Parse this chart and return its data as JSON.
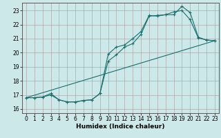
{
  "title": "",
  "xlabel": "Humidex (Indice chaleur)",
  "background_color": "#cce8e8",
  "grid_color": "#aaaaaa",
  "line_color": "#1a6e6e",
  "xlim": [
    -0.5,
    23.5
  ],
  "ylim": [
    15.7,
    23.55
  ],
  "xticks": [
    0,
    1,
    2,
    3,
    4,
    5,
    6,
    7,
    8,
    9,
    10,
    11,
    12,
    13,
    14,
    15,
    16,
    17,
    18,
    19,
    20,
    21,
    22,
    23
  ],
  "yticks": [
    16,
    17,
    18,
    19,
    20,
    21,
    22,
    23
  ],
  "line1_x": [
    0,
    1,
    2,
    3,
    4,
    5,
    6,
    7,
    8,
    9,
    10,
    11,
    12,
    13,
    14,
    15,
    16,
    17,
    18,
    19,
    20,
    21,
    22,
    23
  ],
  "line1_y": [
    16.8,
    16.8,
    16.85,
    17.0,
    16.65,
    16.5,
    16.5,
    16.6,
    16.65,
    17.1,
    19.9,
    20.4,
    20.55,
    21.0,
    21.5,
    22.65,
    22.6,
    22.7,
    22.9,
    23.0,
    22.35,
    21.05,
    20.9,
    20.85
  ],
  "line2_x": [
    0,
    1,
    2,
    3,
    4,
    5,
    6,
    7,
    8,
    9,
    10,
    11,
    12,
    13,
    14,
    15,
    16,
    17,
    18,
    19,
    20,
    21,
    22,
    23
  ],
  "line2_y": [
    16.8,
    16.8,
    16.85,
    17.1,
    16.65,
    16.5,
    16.5,
    16.6,
    16.65,
    17.1,
    19.4,
    19.85,
    20.4,
    20.65,
    21.3,
    22.6,
    22.65,
    22.7,
    22.7,
    23.3,
    22.85,
    21.1,
    20.9,
    20.85
  ],
  "line3_x": [
    0,
    23
  ],
  "line3_y": [
    16.8,
    20.85
  ]
}
